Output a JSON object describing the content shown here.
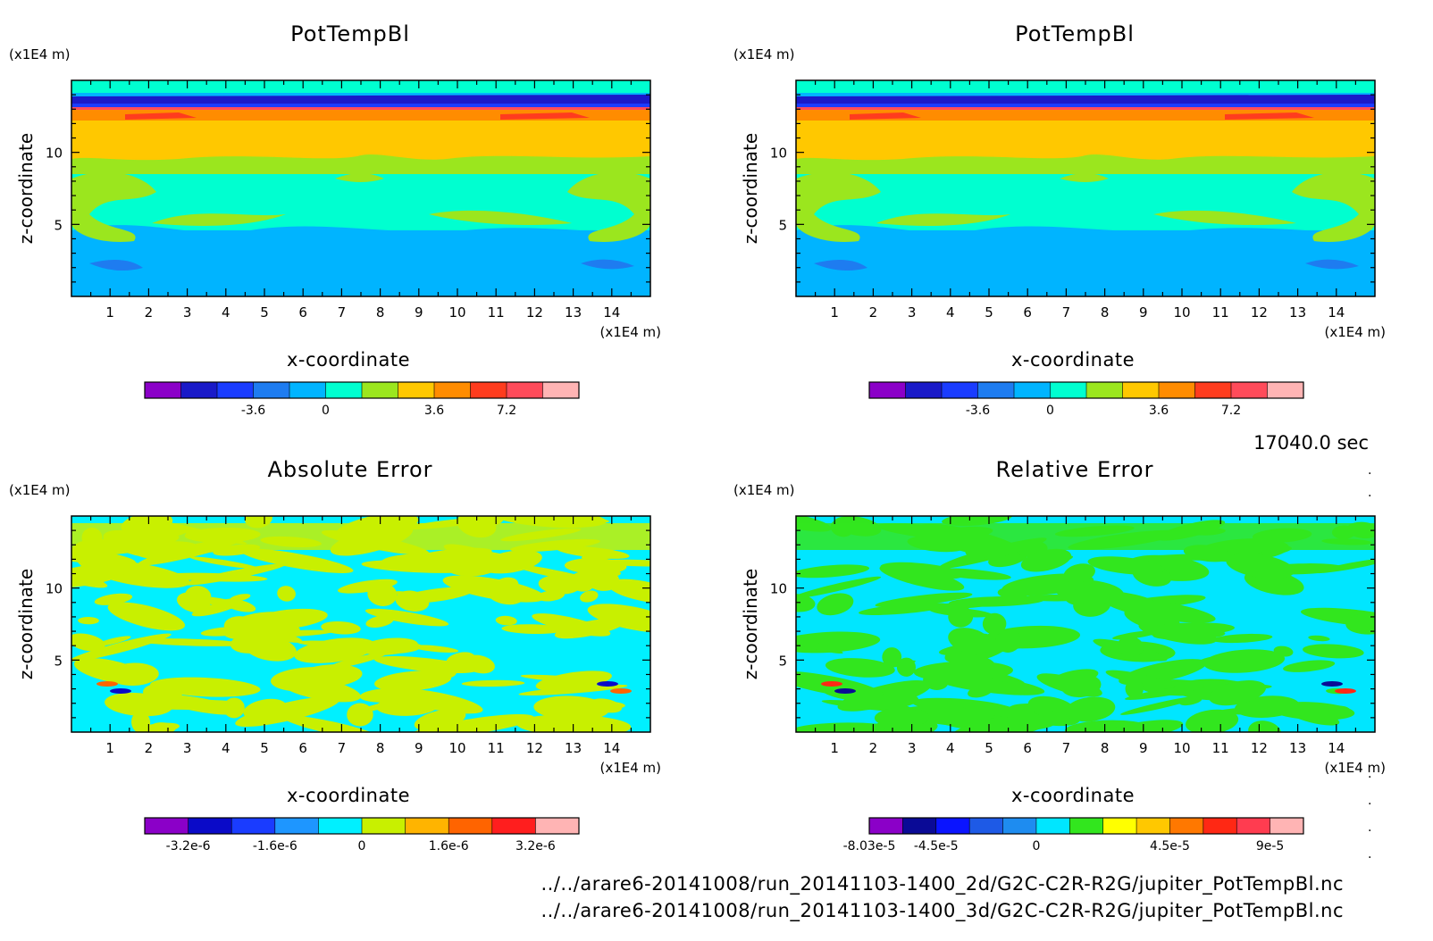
{
  "time_label": "17040.0 sec",
  "footer": {
    "line1": "../../arare6-20141008/run_20141103-1400_2d/G2C-C2R-R2G/jupiter_PotTempBl.nc",
    "line2": "../../arare6-20141008/run_20141103-1400_3d/G2C-C2R-R2G/jupiter_PotTempBl.nc"
  },
  "chart_data": [
    {
      "type": "heatmap",
      "title": "PotTempBl",
      "xlabel": "x-coordinate",
      "ylabel": "z-coordinate",
      "x_unit": "(x1E4 m)",
      "y_unit": "(x1E4 m)",
      "xlim": [
        0,
        15
      ],
      "ylim": [
        0,
        15
      ],
      "x_ticks": [
        "1",
        "2",
        "3",
        "4",
        "5",
        "6",
        "7",
        "8",
        "9",
        "10",
        "11",
        "12",
        "13",
        "14"
      ],
      "y_ticks": [
        "5",
        "10"
      ],
      "colorbar": {
        "colors": [
          "#8b00c8",
          "#1a1ac8",
          "#1a3cff",
          "#1e7cf0",
          "#00b4ff",
          "#00ffd0",
          "#9be61e",
          "#ffc800",
          "#ff8c00",
          "#ff3c1e",
          "#ff4b5a",
          "#ffb4b4"
        ],
        "tick_labels": [
          "-3.6",
          "0",
          "3.6",
          "7.2"
        ],
        "tick_boundaries": [
          3,
          5,
          8,
          10
        ]
      }
    },
    {
      "type": "heatmap",
      "title": "PotTempBl",
      "xlabel": "x-coordinate",
      "ylabel": "z-coordinate",
      "x_unit": "(x1E4 m)",
      "y_unit": "(x1E4 m)",
      "xlim": [
        0,
        15
      ],
      "ylim": [
        0,
        15
      ],
      "x_ticks": [
        "1",
        "2",
        "3",
        "4",
        "5",
        "6",
        "7",
        "8",
        "9",
        "10",
        "11",
        "12",
        "13",
        "14"
      ],
      "y_ticks": [
        "5",
        "10"
      ],
      "colorbar": {
        "colors": [
          "#8b00c8",
          "#1a1ac8",
          "#1a3cff",
          "#1e7cf0",
          "#00b4ff",
          "#00ffd0",
          "#9be61e",
          "#ffc800",
          "#ff8c00",
          "#ff3c1e",
          "#ff4b5a",
          "#ffb4b4"
        ],
        "tick_labels": [
          "-3.6",
          "0",
          "3.6",
          "7.2"
        ],
        "tick_boundaries": [
          3,
          5,
          8,
          10
        ]
      }
    },
    {
      "type": "heatmap",
      "title": "Absolute Error",
      "xlabel": "x-coordinate",
      "ylabel": "z-coordinate",
      "x_unit": "(x1E4 m)",
      "y_unit": "(x1E4 m)",
      "xlim": [
        0,
        15
      ],
      "ylim": [
        0,
        15
      ],
      "x_ticks": [
        "1",
        "2",
        "3",
        "4",
        "5",
        "6",
        "7",
        "8",
        "9",
        "10",
        "11",
        "12",
        "13",
        "14"
      ],
      "y_ticks": [
        "5",
        "10"
      ],
      "colorbar": {
        "colors": [
          "#8b00c8",
          "#0a0ac8",
          "#1a3cff",
          "#1e96ff",
          "#00f0ff",
          "#c8f000",
          "#ffb400",
          "#ff6400",
          "#ff1e1e",
          "#ffb4b4"
        ],
        "tick_labels": [
          "-3.2e-6",
          "-1.6e-6",
          "0",
          "1.6e-6",
          "3.2e-6"
        ],
        "tick_boundaries": [
          1,
          3,
          5,
          7,
          9
        ]
      }
    },
    {
      "type": "heatmap",
      "title": "Relative Error",
      "xlabel": "x-coordinate",
      "ylabel": "z-coordinate",
      "x_unit": "(x1E4 m)",
      "y_unit": "(x1E4 m)",
      "xlim": [
        0,
        15
      ],
      "ylim": [
        0,
        15
      ],
      "x_ticks": [
        "1",
        "2",
        "3",
        "4",
        "5",
        "6",
        "7",
        "8",
        "9",
        "10",
        "11",
        "12",
        "13",
        "14"
      ],
      "y_ticks": [
        "5",
        "10"
      ],
      "colorbar": {
        "colors": [
          "#8b00c8",
          "#0a0a96",
          "#0a14ff",
          "#1e5ae6",
          "#1e8cf0",
          "#00e6ff",
          "#32e61e",
          "#ffff00",
          "#ffc800",
          "#ff7800",
          "#ff2814",
          "#ff3c50",
          "#ffb4b4"
        ],
        "tick_labels": [
          "-8.03e-5",
          "-4.5e-5",
          "0",
          "4.5e-5",
          "9e-5"
        ],
        "tick_boundaries": [
          0,
          2,
          5,
          9,
          12
        ]
      }
    }
  ]
}
